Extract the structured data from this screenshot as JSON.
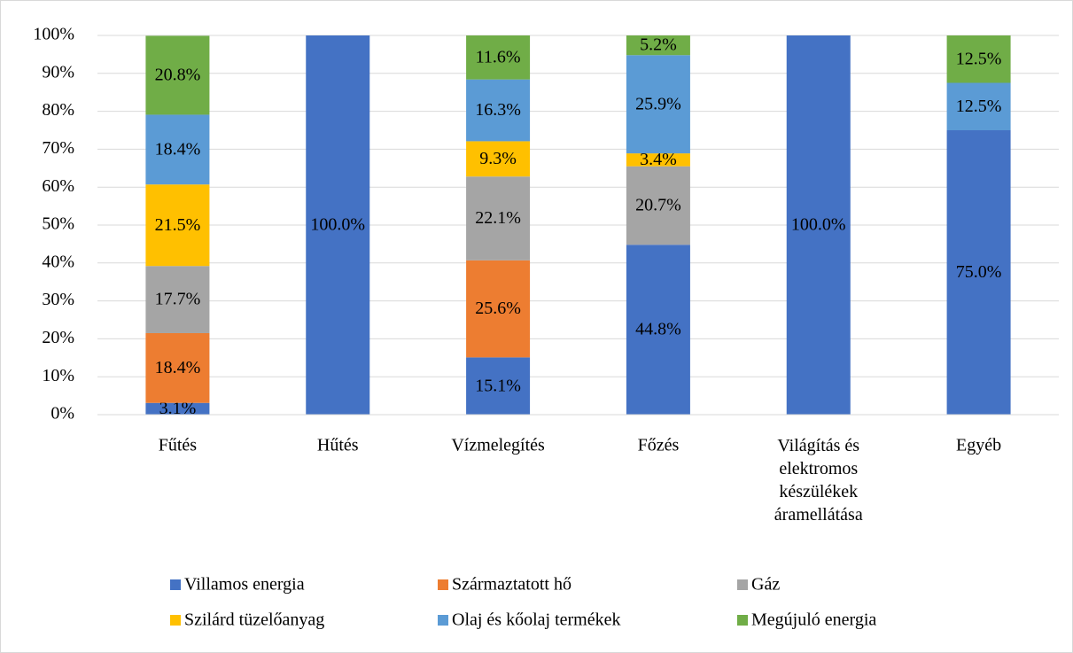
{
  "chart_data": {
    "type": "stacked_bar",
    "categories": [
      "Fűtés",
      "Hűtés",
      "Vízmelegítés",
      "Főzés",
      "Világítás és elektromos készülékek áramellátása",
      "Egyéb"
    ],
    "series": [
      {
        "name": "Villamos energia",
        "color": "#4472c4",
        "values": [
          3.1,
          100.0,
          15.1,
          44.8,
          100.0,
          75.0
        ],
        "value_labels": [
          "3.1%",
          "100.0%",
          "15.1%",
          "44.8%",
          "100.0%",
          "75.0%"
        ]
      },
      {
        "name": "Származtatott hő",
        "color": "#ed7d31",
        "values": [
          18.4,
          null,
          25.6,
          null,
          null,
          null
        ],
        "value_labels": [
          "18.4%",
          null,
          "25.6%",
          null,
          null,
          null
        ]
      },
      {
        "name": "Gáz",
        "color": "#a5a5a5",
        "values": [
          17.7,
          null,
          22.1,
          20.7,
          null,
          null
        ],
        "value_labels": [
          "17.7%",
          null,
          "22.1%",
          "20.7%",
          null,
          null
        ]
      },
      {
        "name": "Szilárd tüzelőanyag",
        "color": "#ffc000",
        "values": [
          21.5,
          null,
          9.3,
          3.4,
          null,
          null
        ],
        "value_labels": [
          "21.5%",
          null,
          "9.3%",
          "3.4%",
          null,
          null
        ]
      },
      {
        "name": "Olaj és kőolaj termékek",
        "color": "#5b9bd5",
        "values": [
          18.4,
          null,
          16.3,
          25.9,
          null,
          12.5
        ],
        "value_labels": [
          "18.4%",
          null,
          "16.3%",
          "25.9%",
          null,
          "12.5%"
        ]
      },
      {
        "name": "Megújuló energia",
        "color": "#70ad47",
        "values": [
          20.8,
          null,
          11.6,
          5.2,
          null,
          12.5
        ],
        "value_labels": [
          "20.8%",
          null,
          "11.6%",
          "5.2%",
          null,
          "12.5%"
        ]
      }
    ],
    "ylim": [
      0,
      100
    ],
    "yticks": [
      {
        "value": 0,
        "label": "0%"
      },
      {
        "value": 10,
        "label": "10%"
      },
      {
        "value": 20,
        "label": "20%"
      },
      {
        "value": 30,
        "label": "30%"
      },
      {
        "value": 40,
        "label": "40%"
      },
      {
        "value": 50,
        "label": "50%"
      },
      {
        "value": 60,
        "label": "60%"
      },
      {
        "value": 70,
        "label": "70%"
      },
      {
        "value": 80,
        "label": "80%"
      },
      {
        "value": 90,
        "label": "90%"
      },
      {
        "value": 100,
        "label": "100%"
      }
    ],
    "grid": true,
    "legend": "bottom"
  }
}
